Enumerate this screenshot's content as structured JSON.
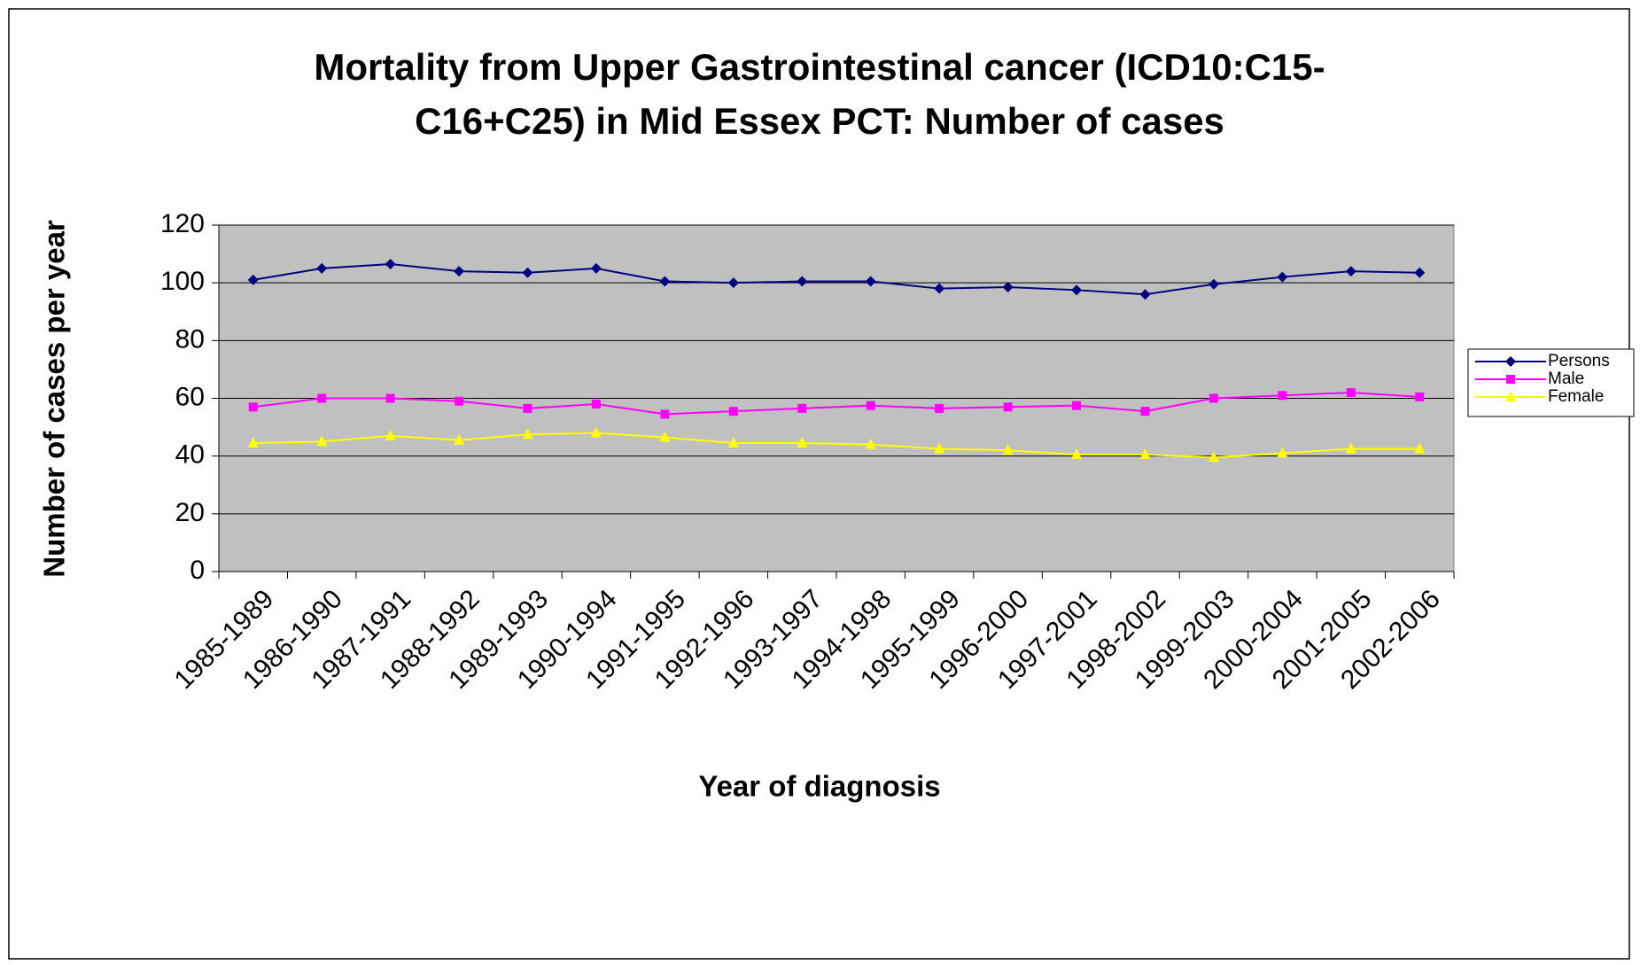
{
  "chart_data": {
    "type": "line",
    "title": [
      "Mortality from Upper Gastrointestinal cancer (ICD10:C15-",
      "C16+C25) in Mid Essex PCT: Number of cases"
    ],
    "x_label": "Year of diagnosis",
    "y_label": "Number of cases per year",
    "categories": [
      "1985-1989",
      "1986-1990",
      "1987-1991",
      "1988-1992",
      "1989-1993",
      "1990-1994",
      "1991-1995",
      "1992-1996",
      "1993-1997",
      "1994-1998",
      "1995-1999",
      "1996-2000",
      "1997-2001",
      "1998-2002",
      "1999-2003",
      "2000-2004",
      "2001-2005",
      "2002-2006"
    ],
    "series": [
      {
        "name": "Persons",
        "color": "#000080",
        "marker": "diamond",
        "values": [
          101,
          105,
          106.5,
          104,
          103.5,
          105,
          100.5,
          100,
          100.5,
          100.5,
          98,
          98.5,
          97.5,
          96,
          99.5,
          102,
          104,
          103.5
        ]
      },
      {
        "name": "Male",
        "color": "#ff00ff",
        "marker": "square",
        "values": [
          57,
          60,
          60,
          59,
          56.5,
          58,
          54.5,
          55.5,
          56.5,
          57.5,
          56.5,
          57,
          57.5,
          55.5,
          60,
          61,
          62,
          60.5
        ]
      },
      {
        "name": "Female",
        "color": "#ffff00",
        "marker": "triangle",
        "values": [
          44.5,
          45,
          47,
          45.5,
          47.5,
          48,
          46.5,
          44.5,
          44.5,
          44,
          42.5,
          42,
          40.5,
          40.5,
          39.5,
          41,
          42.5,
          42.5
        ]
      }
    ],
    "ylim": [
      0,
      120
    ],
    "yticks": [
      0,
      20,
      40,
      60,
      80,
      100,
      120
    ],
    "grid": true,
    "legend": "right"
  }
}
